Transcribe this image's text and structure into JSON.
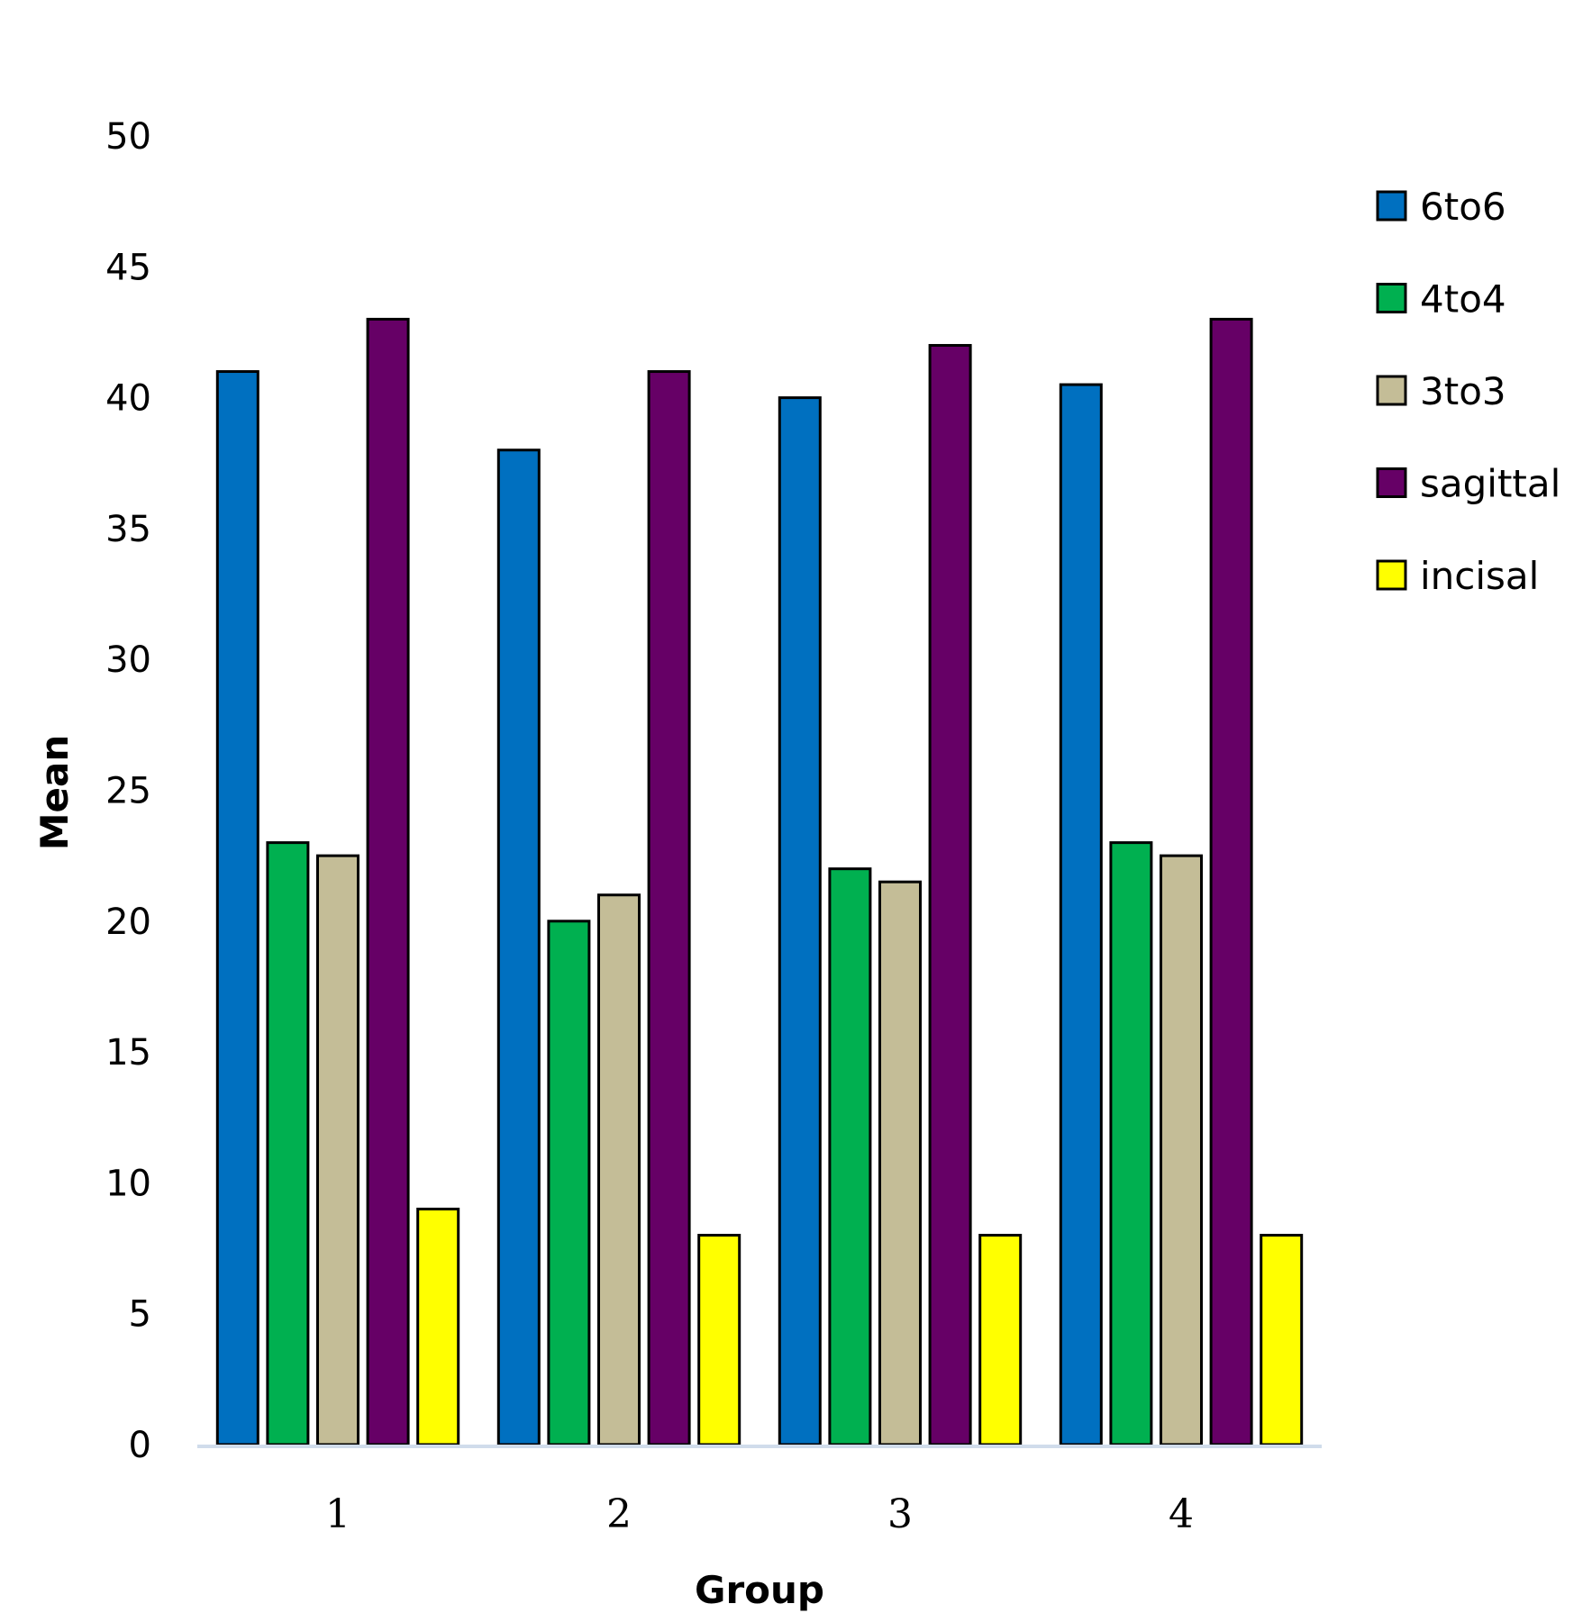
{
  "chart_data": {
    "type": "bar",
    "title": "",
    "xlabel": "Group",
    "ylabel": "Mean",
    "ylim": [
      0,
      50
    ],
    "yticks": [
      "0",
      "5",
      "10",
      "15",
      "20",
      "25",
      "30",
      "35",
      "40",
      "45",
      "50"
    ],
    "categories": [
      "1",
      "2",
      "3",
      "4"
    ],
    "grid": false,
    "legend_position": "right",
    "series": [
      {
        "name": "6to6",
        "color": "#0070C0",
        "values": [
          41,
          38,
          40,
          40.5
        ]
      },
      {
        "name": "4to4",
        "color": "#00B050",
        "values": [
          23,
          20,
          22,
          23
        ]
      },
      {
        "name": "3to3",
        "color": "#C4BD97",
        "values": [
          22.5,
          21,
          21.5,
          22.5
        ]
      },
      {
        "name": "sagittal",
        "color": "#660066",
        "values": [
          43,
          41,
          42,
          43
        ]
      },
      {
        "name": "incisal",
        "color": "#FFFF00",
        "values": [
          9,
          8,
          8,
          8
        ]
      }
    ]
  }
}
